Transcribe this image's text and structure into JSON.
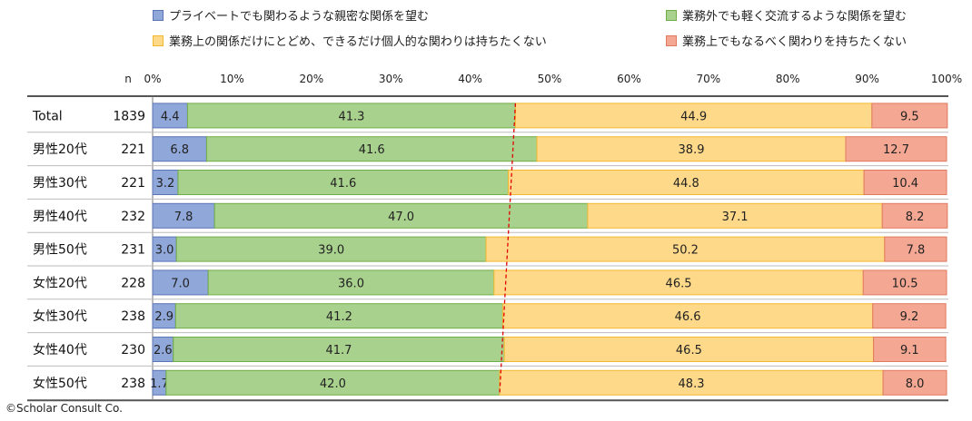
{
  "chart_data": {
    "type": "bar",
    "orientation": "horizontal",
    "stacked": true,
    "percent": true,
    "n_header": "n",
    "categories": [
      "Total",
      "男性20代",
      "男性30代",
      "男性40代",
      "男性50代",
      "女性20代",
      "女性30代",
      "女性40代",
      "女性50代"
    ],
    "n_values": [
      "1839",
      "221",
      "221",
      "232",
      "231",
      "228",
      "238",
      "230",
      "238"
    ],
    "series": [
      {
        "name": "プライベートでも関わるような親密な関係を望む",
        "color": "#8fa7d9",
        "border": "#5b74b6",
        "values": [
          4.4,
          6.8,
          3.2,
          7.8,
          3.0,
          7.0,
          2.9,
          2.6,
          1.7
        ],
        "labels": [
          "4.4",
          "6.8",
          "3.2",
          "7.8",
          "3.0",
          "7.0",
          "2.9",
          "2.6",
          "1.7"
        ]
      },
      {
        "name": "業務外でも軽く交流するような関係を望む",
        "color": "#a9d18e",
        "border": "#70ad47",
        "values": [
          41.3,
          41.6,
          41.6,
          47.0,
          39.0,
          36.0,
          41.2,
          41.7,
          42.0
        ],
        "labels": [
          "41.3",
          "41.6",
          "41.6",
          "47.0",
          "39.0",
          "36.0",
          "41.2",
          "41.7",
          "42.0"
        ]
      },
      {
        "name": "業務上の関係だけにとどめ、できるだけ個人的な関わりは持ちたくない",
        "color": "#ffd98a",
        "border": "#f2b930",
        "values": [
          44.9,
          38.9,
          44.8,
          37.1,
          50.2,
          46.5,
          46.6,
          46.5,
          48.3
        ],
        "labels": [
          "44.9",
          "38.9",
          "44.8",
          "37.1",
          "50.2",
          "46.5",
          "46.6",
          "46.5",
          "48.3"
        ]
      },
      {
        "name": "業務上でもなるべく関わりを持ちたくない",
        "color": "#f4a792",
        "border": "#e07a5f",
        "values": [
          9.5,
          12.7,
          10.4,
          8.2,
          7.8,
          10.5,
          9.2,
          9.1,
          8.0
        ],
        "labels": [
          "9.5",
          "12.7",
          "10.4",
          "8.2",
          "7.8",
          "10.5",
          "9.2",
          "9.1",
          "8.0"
        ]
      }
    ],
    "x_ticks": [
      "0%",
      "10%",
      "20%",
      "30%",
      "40%",
      "50%",
      "60%",
      "70%",
      "80%",
      "90%",
      "100%"
    ],
    "xlim": [
      0,
      100
    ],
    "legend_position": "top",
    "reference_line": {
      "style": "red dashed",
      "connects": "boundary between series 2 and 3 across rows"
    }
  },
  "footer": {
    "copyright": "©Scholar Consult Co."
  }
}
